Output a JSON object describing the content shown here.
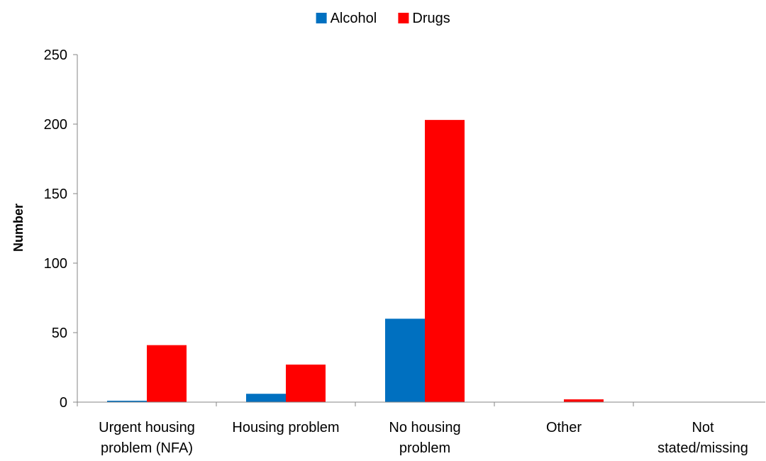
{
  "chart_data": {
    "type": "bar",
    "categories": [
      [
        "Urgent housing",
        "problem (NFA)"
      ],
      [
        "Housing problem"
      ],
      [
        "No housing",
        "problem"
      ],
      [
        "Other"
      ],
      [
        "Not",
        "stated/missing"
      ]
    ],
    "series": [
      {
        "name": "Alcohol",
        "color": "#0070c0",
        "values": [
          1,
          6,
          60,
          0,
          0
        ]
      },
      {
        "name": "Drugs",
        "color": "#ff0000",
        "values": [
          41,
          27,
          203,
          2,
          0
        ]
      }
    ],
    "ylabel": "Number",
    "ylim": [
      0,
      250
    ],
    "yticks": [
      0,
      50,
      100,
      150,
      200,
      250
    ],
    "legend_position": "top-center",
    "grid": false
  }
}
